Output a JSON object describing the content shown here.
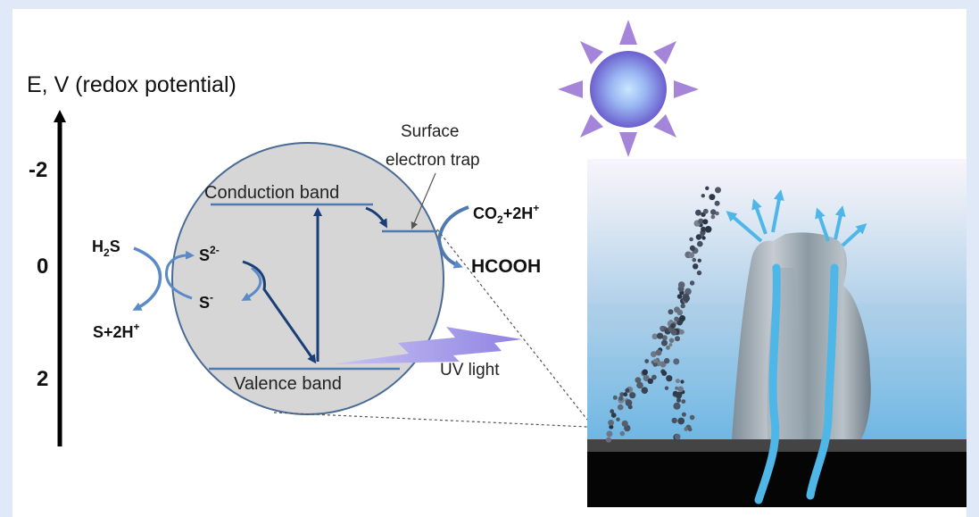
{
  "axis": {
    "title": "E, V (redox potential)",
    "ticks": [
      "-2",
      "0",
      "2"
    ]
  },
  "bands": {
    "conduction": "Conduction band",
    "valence": "Valence band"
  },
  "trap": {
    "line1": "Surface",
    "line2": "electron trap"
  },
  "uv": "UV light",
  "species": {
    "h2s": {
      "main": "H",
      "sub": "2",
      "tail": "S"
    },
    "s2minus": {
      "main": "S",
      "sup": "2-"
    },
    "sminus": {
      "main": "S",
      "sup": "-"
    },
    "s2h": {
      "main": "S+2H",
      "sup": "+"
    },
    "co2": {
      "main": "CO",
      "sub": "2",
      "mid": "+2H",
      "sup": "+"
    },
    "hcooh": "HCOOH"
  },
  "colors": {
    "particle_fill": "#d6d6d6",
    "particle_stroke": "#4a6b96",
    "band_line": "#4f79b1",
    "arrow_blue": "#1a3f78",
    "uv_purple": "#9a8fe6",
    "sun_ray": "#a585d9",
    "vent_blue": "#4fb7e8"
  }
}
